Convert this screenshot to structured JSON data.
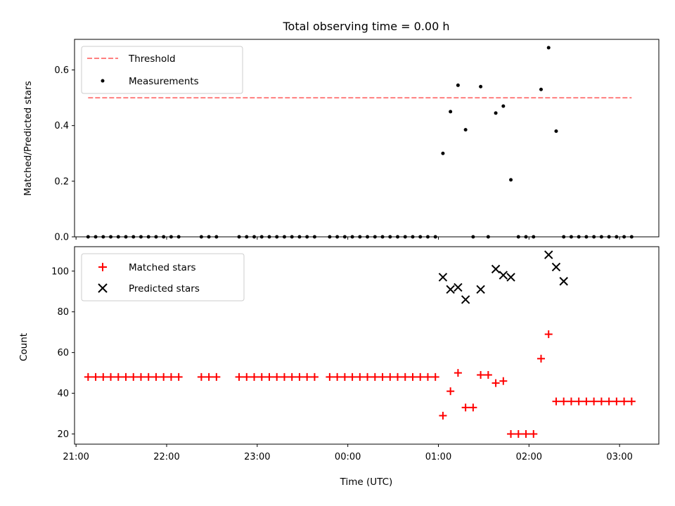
{
  "chart_data": [
    {
      "type": "scatter",
      "title": "Total observing time = 0.00 h",
      "xlabel": "",
      "ylabel": "Matched/Predicted stars",
      "ylim": [
        0,
        0.71
      ],
      "yticks": [
        "0.0",
        "0.2",
        "0.4",
        "0.6"
      ],
      "xlim": [
        "20:59",
        "03:26"
      ],
      "grid": false,
      "legend_position": "top-left",
      "colors": {
        "threshold": "#ff7f7f",
        "measurements": "#000000"
      },
      "threshold": {
        "name": "Threshold",
        "value": 0.5,
        "x_range": [
          "21:08",
          "03:08"
        ]
      },
      "series": [
        {
          "name": "Measurements",
          "x": [
            "21:08",
            "21:13",
            "21:18",
            "21:23",
            "21:28",
            "21:33",
            "21:38",
            "21:43",
            "21:48",
            "21:53",
            "21:58",
            "22:03",
            "22:08",
            "22:23",
            "22:28",
            "22:33",
            "22:48",
            "22:53",
            "22:58",
            "23:03",
            "23:08",
            "23:13",
            "23:18",
            "23:23",
            "23:28",
            "23:33",
            "23:38",
            "23:48",
            "23:53",
            "23:58",
            "00:03",
            "00:08",
            "00:13",
            "00:18",
            "00:23",
            "00:28",
            "00:33",
            "00:38",
            "00:43",
            "00:48",
            "00:53",
            "00:58",
            "01:03",
            "01:08",
            "01:13",
            "01:18",
            "01:23",
            "01:28",
            "01:33",
            "01:38",
            "01:43",
            "01:48",
            "01:53",
            "01:58",
            "02:03",
            "02:08",
            "02:13",
            "02:18",
            "02:23",
            "02:28",
            "02:33",
            "02:38",
            "02:43",
            "02:48",
            "02:53",
            "02:58",
            "03:03",
            "03:08"
          ],
          "y": [
            0,
            0,
            0,
            0,
            0,
            0,
            0,
            0,
            0,
            0,
            0,
            0,
            0,
            0,
            0,
            0,
            0,
            0,
            0,
            0,
            0,
            0,
            0,
            0,
            0,
            0,
            0,
            0,
            0,
            0,
            0,
            0,
            0,
            0,
            0,
            0,
            0,
            0,
            0,
            0,
            0,
            0,
            0.3,
            0.45,
            0.545,
            0.385,
            0,
            0.54,
            0,
            0.445,
            0.47,
            0.205,
            0,
            0,
            0,
            0.53,
            0.68,
            0.38,
            0,
            0,
            0,
            0,
            0,
            0,
            0,
            0,
            0,
            0
          ]
        }
      ]
    },
    {
      "type": "scatter",
      "title": "",
      "xlabel": "Time (UTC)",
      "ylabel": "Count",
      "ylim": [
        15,
        112
      ],
      "yticks": [
        "20",
        "40",
        "60",
        "80",
        "100"
      ],
      "xlim": [
        "20:59",
        "03:26"
      ],
      "xticks": [
        "21:00",
        "22:00",
        "23:00",
        "00:00",
        "01:00",
        "02:00",
        "03:00"
      ],
      "grid": false,
      "legend_position": "top-left",
      "colors": {
        "matched": "#ff0000",
        "predicted": "#000000"
      },
      "series": [
        {
          "name": "Matched stars",
          "x": [
            "21:08",
            "21:13",
            "21:18",
            "21:23",
            "21:28",
            "21:33",
            "21:38",
            "21:43",
            "21:48",
            "21:53",
            "21:58",
            "22:03",
            "22:08",
            "22:23",
            "22:28",
            "22:33",
            "22:48",
            "22:53",
            "22:58",
            "23:03",
            "23:08",
            "23:13",
            "23:18",
            "23:23",
            "23:28",
            "23:33",
            "23:38",
            "23:48",
            "23:53",
            "23:58",
            "00:03",
            "00:08",
            "00:13",
            "00:18",
            "00:23",
            "00:28",
            "00:33",
            "00:38",
            "00:43",
            "00:48",
            "00:53",
            "00:58",
            "01:03",
            "01:08",
            "01:13",
            "01:18",
            "01:23",
            "01:28",
            "01:33",
            "01:38",
            "01:43",
            "01:48",
            "01:53",
            "01:58",
            "02:03",
            "02:08",
            "02:13",
            "02:18",
            "02:23",
            "02:28",
            "02:33",
            "02:38",
            "02:43",
            "02:48",
            "02:53",
            "02:58",
            "03:03",
            "03:08"
          ],
          "y": [
            48,
            48,
            48,
            48,
            48,
            48,
            48,
            48,
            48,
            48,
            48,
            48,
            48,
            48,
            48,
            48,
            48,
            48,
            48,
            48,
            48,
            48,
            48,
            48,
            48,
            48,
            48,
            48,
            48,
            48,
            48,
            48,
            48,
            48,
            48,
            48,
            48,
            48,
            48,
            48,
            48,
            48,
            29,
            41,
            50,
            33,
            33,
            49,
            49,
            45,
            46,
            20,
            20,
            20,
            20,
            57,
            69,
            36,
            36,
            36,
            36,
            36,
            36,
            36,
            36,
            36,
            36,
            36
          ]
        },
        {
          "name": "Predicted stars",
          "x": [
            "01:03",
            "01:08",
            "01:13",
            "01:18",
            "01:28",
            "01:38",
            "01:43",
            "01:48",
            "02:13",
            "02:18",
            "02:23"
          ],
          "y": [
            97,
            91,
            92,
            86,
            91,
            101,
            98,
            97,
            108,
            102,
            95
          ]
        }
      ]
    }
  ]
}
